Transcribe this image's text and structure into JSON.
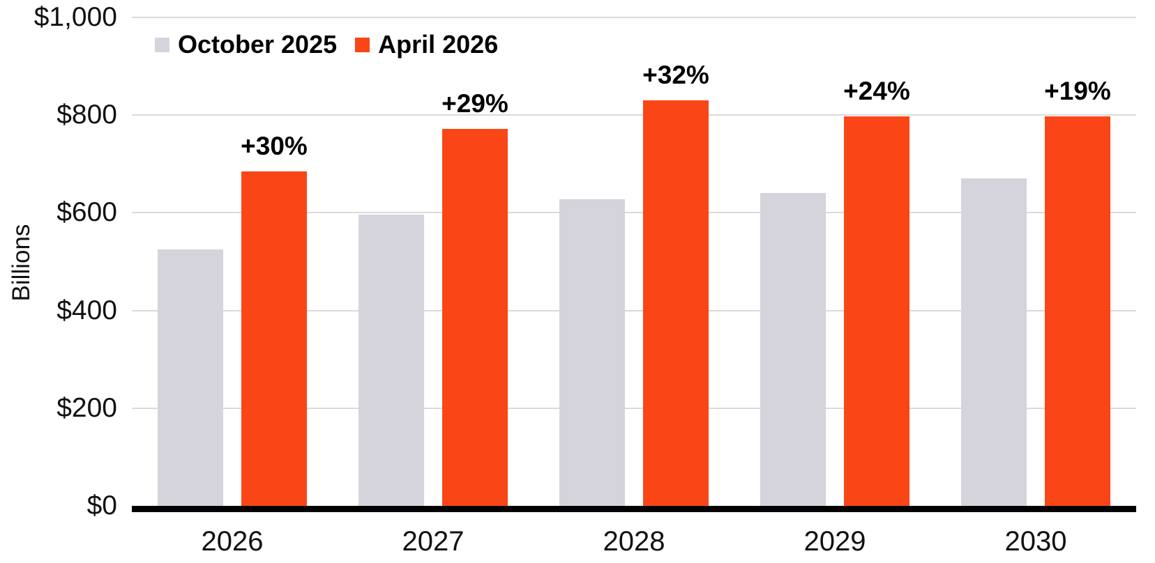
{
  "chart_data": {
    "type": "bar",
    "title": "",
    "xlabel": "",
    "ylabel": "Billions",
    "categories": [
      "2026",
      "2027",
      "2028",
      "2029",
      "2030"
    ],
    "series": [
      {
        "name": "October 2025",
        "color": "#D5D3DC",
        "values": [
          525,
          597,
          627,
          640,
          670
        ]
      },
      {
        "name": "April 2026",
        "color": "#FA4616",
        "values": [
          685,
          772,
          830,
          797,
          797
        ]
      }
    ],
    "bar_labels": {
      "on_series": "April 2026",
      "values": [
        "+30%",
        "+29%",
        "+32%",
        "+24%",
        "+19%"
      ]
    },
    "y_ticks": [
      {
        "value": 0,
        "label": "$0"
      },
      {
        "value": 200,
        "label": "$200"
      },
      {
        "value": 400,
        "label": "$400"
      },
      {
        "value": 600,
        "label": "$600"
      },
      {
        "value": 800,
        "label": "$800"
      },
      {
        "value": 1000,
        "label": "$1,000"
      }
    ],
    "ylim": [
      0,
      1000
    ],
    "grid": true,
    "legend_position": "top-left",
    "colors": {
      "grid": "#DADADA",
      "axis_line": "#000000",
      "text": "#111111",
      "label_text": "#000000"
    }
  }
}
